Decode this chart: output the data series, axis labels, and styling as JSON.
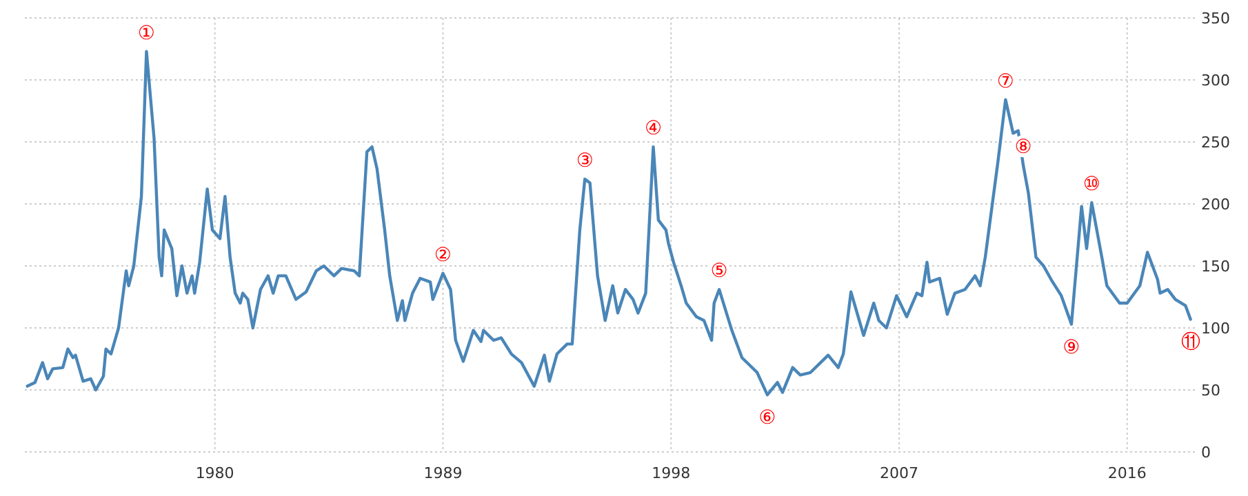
{
  "chart_data": {
    "type": "line",
    "x": [
      1972.6,
      1972.9,
      1973.2,
      1973.4,
      1973.6,
      1974.0,
      1974.2,
      1974.4,
      1974.5,
      1974.8,
      1975.1,
      1975.3,
      1975.6,
      1975.7,
      1975.9,
      1976.2,
      1976.5,
      1976.6,
      1976.8,
      1977.1,
      1977.3,
      1977.6,
      1977.8,
      1977.9,
      1978.0,
      1978.3,
      1978.5,
      1978.7,
      1978.9,
      1979.1,
      1979.2,
      1979.4,
      1979.7,
      1979.9,
      1980.2,
      1980.4,
      1980.6,
      1980.8,
      1981.0,
      1981.1,
      1981.3,
      1981.5,
      1981.8,
      1982.1,
      1982.3,
      1982.5,
      1982.8,
      1983.2,
      1983.6,
      1984.0,
      1984.3,
      1984.7,
      1985.0,
      1985.5,
      1985.7,
      1986.0,
      1986.2,
      1986.4,
      1986.7,
      1986.9,
      1987.2,
      1987.4,
      1987.5,
      1987.8,
      1988.1,
      1988.5,
      1988.6,
      1989.0,
      1989.3,
      1989.5,
      1989.8,
      1990.2,
      1990.5,
      1990.6,
      1991.0,
      1991.3,
      1991.7,
      1992.1,
      1992.6,
      1993.0,
      1993.2,
      1993.5,
      1993.9,
      1994.1,
      1994.4,
      1994.6,
      1994.8,
      1995.1,
      1995.4,
      1995.7,
      1995.9,
      1996.2,
      1996.5,
      1996.7,
      1997.0,
      1997.3,
      1997.5,
      1997.8,
      1997.9,
      1998.1,
      1998.4,
      1998.6,
      1999.0,
      1999.3,
      1999.6,
      1999.7,
      1999.9,
      2000.4,
      2000.8,
      2001.4,
      2001.8,
      2002.2,
      2002.4,
      2002.8,
      2003.1,
      2003.5,
      2003.9,
      2004.2,
      2004.6,
      2004.8,
      2005.1,
      2005.6,
      2006.0,
      2006.2,
      2006.5,
      2006.9,
      2007.3,
      2007.7,
      2007.9,
      2008.1,
      2008.2,
      2008.6,
      2008.9,
      2009.2,
      2009.6,
      2010.0,
      2010.2,
      2010.4,
      2010.9,
      2011.2,
      2011.5,
      2011.7,
      2011.9,
      2012.1,
      2012.4,
      2012.7,
      2013.0,
      2013.4,
      2013.8,
      2014.2,
      2014.4,
      2014.6,
      2015.0,
      2015.2,
      2015.7,
      2016.0,
      2016.5,
      2016.8,
      2017.2,
      2017.3,
      2017.6,
      2017.9,
      2018.3,
      2018.5
    ],
    "series": [
      {
        "color": "#4a86b8",
        "values": [
          53,
          56,
          72,
          59,
          67,
          68,
          83,
          76,
          78,
          57,
          59,
          50,
          61,
          83,
          79,
          100,
          146,
          134,
          150,
          206,
          323,
          253,
          157,
          142,
          179,
          164,
          126,
          150,
          128,
          142,
          128,
          153,
          212,
          179,
          172,
          206,
          157,
          128,
          120,
          128,
          123,
          100,
          131,
          142,
          128,
          142,
          142,
          123,
          129,
          146,
          150,
          142,
          148,
          146,
          142,
          242,
          246,
          228,
          179,
          142,
          106,
          122,
          106,
          128,
          140,
          137,
          123,
          144,
          131,
          90,
          73,
          98,
          89,
          98,
          90,
          92,
          79,
          72,
          53,
          78,
          57,
          79,
          87,
          87,
          179,
          220,
          217,
          142,
          106,
          134,
          112,
          131,
          123,
          112,
          128,
          246,
          187,
          179,
          168,
          153,
          134,
          120,
          109,
          106,
          90,
          120,
          131,
          98,
          76,
          64,
          46,
          56,
          48,
          68,
          62,
          64,
          72,
          78,
          68,
          79,
          129,
          94,
          120,
          106,
          100,
          126,
          109,
          128,
          126,
          153,
          137,
          140,
          111,
          128,
          131,
          142,
          134,
          157,
          234,
          284,
          257,
          259,
          231,
          209,
          157,
          150,
          139,
          126,
          103,
          198,
          164,
          201,
          157,
          134,
          120,
          120,
          134,
          161,
          139,
          128,
          131,
          123,
          118,
          107
        ]
      }
    ],
    "xlim": [
      1972.5,
      2018.7
    ],
    "ylim": [
      0,
      350
    ],
    "xticks": [
      1980,
      1989,
      1998,
      2007,
      2016
    ],
    "yticks": [
      0,
      50,
      100,
      150,
      200,
      250,
      300,
      350
    ],
    "grid": true,
    "marker": "none",
    "line_style": "solid",
    "annotations": [
      {
        "text": "①",
        "x": 1977.3,
        "y": 323
      },
      {
        "text": "②",
        "x": 1989.0,
        "y": 144
      },
      {
        "text": "③",
        "x": 1994.6,
        "y": 220
      },
      {
        "text": "④",
        "x": 1997.3,
        "y": 246
      },
      {
        "text": "⑤",
        "x": 1999.9,
        "y": 131
      },
      {
        "text": "⑥",
        "x": 2001.8,
        "y": 46
      },
      {
        "text": "⑦",
        "x": 2011.2,
        "y": 284
      },
      {
        "text": "⑧",
        "x": 2011.9,
        "y": 231
      },
      {
        "text": "⑨",
        "x": 2013.8,
        "y": 103
      },
      {
        "text": "⑩",
        "x": 2014.6,
        "y": 201
      },
      {
        "text": "⑪",
        "x": 2018.5,
        "y": 107
      }
    ]
  }
}
